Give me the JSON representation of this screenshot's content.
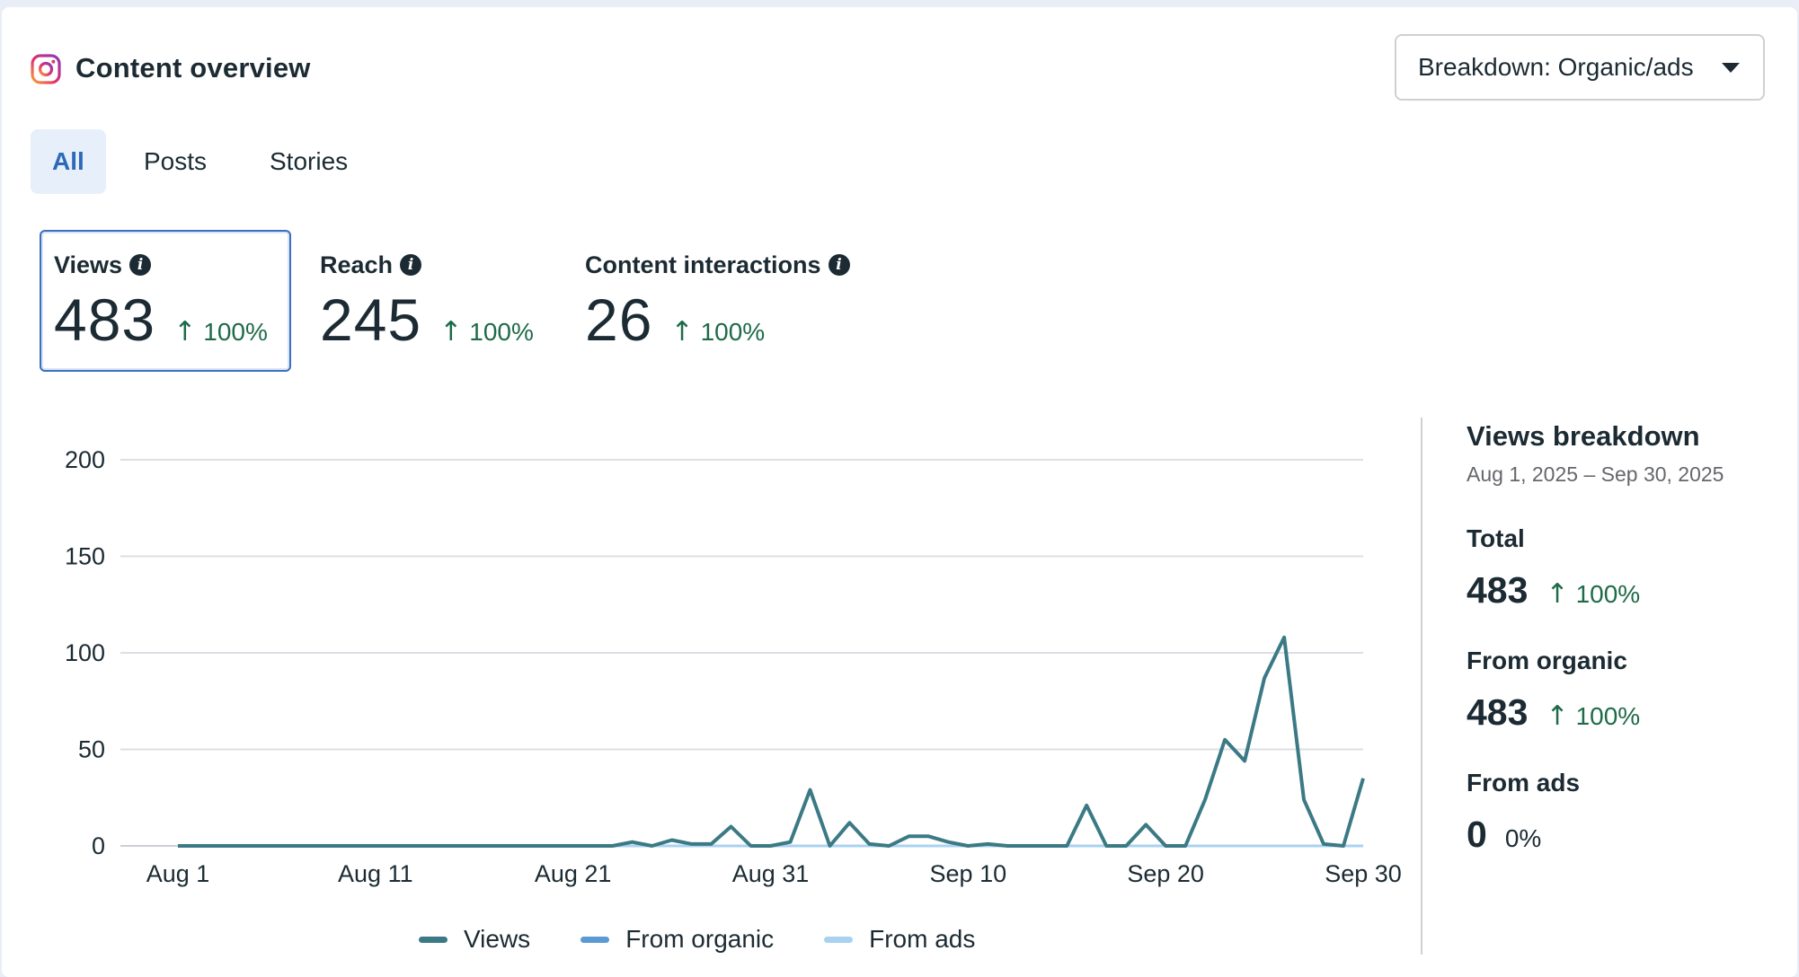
{
  "header": {
    "title": "Content overview",
    "breakdown_dropdown": "Breakdown: Organic/ads"
  },
  "tabs": [
    {
      "label": "All",
      "active": true
    },
    {
      "label": "Posts",
      "active": false
    },
    {
      "label": "Stories",
      "active": false
    }
  ],
  "metrics": [
    {
      "label": "Views",
      "value": "483",
      "change": "100%",
      "selected": true
    },
    {
      "label": "Reach",
      "value": "245",
      "change": "100%",
      "selected": false
    },
    {
      "label": "Content interactions",
      "value": "26",
      "change": "100%",
      "selected": false
    }
  ],
  "colors": {
    "views": "#3b7a85",
    "organic": "#5b9ad5",
    "ads": "#a9d2f2",
    "positive": "#1e6b49",
    "accent": "#2c6ab8"
  },
  "chart_data": {
    "type": "line",
    "x": [
      "Aug 1",
      "Aug 2",
      "Aug 3",
      "Aug 4",
      "Aug 5",
      "Aug 6",
      "Aug 7",
      "Aug 8",
      "Aug 9",
      "Aug 10",
      "Aug 11",
      "Aug 12",
      "Aug 13",
      "Aug 14",
      "Aug 15",
      "Aug 16",
      "Aug 17",
      "Aug 18",
      "Aug 19",
      "Aug 20",
      "Aug 21",
      "Aug 22",
      "Aug 23",
      "Aug 24",
      "Aug 25",
      "Aug 26",
      "Aug 27",
      "Aug 28",
      "Aug 29",
      "Aug 30",
      "Aug 31",
      "Sep 1",
      "Sep 2",
      "Sep 3",
      "Sep 4",
      "Sep 5",
      "Sep 6",
      "Sep 7",
      "Sep 8",
      "Sep 9",
      "Sep 10",
      "Sep 11",
      "Sep 12",
      "Sep 13",
      "Sep 14",
      "Sep 15",
      "Sep 16",
      "Sep 17",
      "Sep 18",
      "Sep 19",
      "Sep 20",
      "Sep 21",
      "Sep 22",
      "Sep 23",
      "Sep 24",
      "Sep 25",
      "Sep 26",
      "Sep 27",
      "Sep 28",
      "Sep 29",
      "Sep 30"
    ],
    "x_tick_labels": [
      "Aug 1",
      "Aug 11",
      "Aug 21",
      "Aug 31",
      "Sep 10",
      "Sep 20",
      "Sep 30"
    ],
    "y_ticks": [
      0,
      50,
      100,
      150,
      200
    ],
    "ylim": [
      0,
      200
    ],
    "grid": true,
    "legend_position": "bottom",
    "series": [
      {
        "name": "Views",
        "color": "#3b7a85",
        "values": [
          0,
          0,
          0,
          0,
          0,
          0,
          0,
          0,
          0,
          0,
          0,
          0,
          0,
          0,
          0,
          0,
          0,
          0,
          0,
          0,
          0,
          0,
          0,
          2,
          0,
          3,
          1,
          1,
          10,
          0,
          0,
          2,
          29,
          0,
          12,
          1,
          0,
          5,
          5,
          2,
          0,
          1,
          0,
          0,
          0,
          0,
          21,
          0,
          0,
          11,
          0,
          0,
          24,
          55,
          44,
          87,
          108,
          24,
          1,
          0,
          35
        ]
      },
      {
        "name": "From organic",
        "color": "#5b9ad5",
        "values": [
          0,
          0,
          0,
          0,
          0,
          0,
          0,
          0,
          0,
          0,
          0,
          0,
          0,
          0,
          0,
          0,
          0,
          0,
          0,
          0,
          0,
          0,
          0,
          2,
          0,
          3,
          1,
          1,
          10,
          0,
          0,
          2,
          29,
          0,
          12,
          1,
          0,
          5,
          5,
          2,
          0,
          1,
          0,
          0,
          0,
          0,
          21,
          0,
          0,
          11,
          0,
          0,
          24,
          55,
          44,
          87,
          108,
          24,
          1,
          0,
          35
        ]
      },
      {
        "name": "From ads",
        "color": "#a9d2f2",
        "values": [
          0,
          0,
          0,
          0,
          0,
          0,
          0,
          0,
          0,
          0,
          0,
          0,
          0,
          0,
          0,
          0,
          0,
          0,
          0,
          0,
          0,
          0,
          0,
          0,
          0,
          0,
          0,
          0,
          0,
          0,
          0,
          0,
          0,
          0,
          0,
          0,
          0,
          0,
          0,
          0,
          0,
          0,
          0,
          0,
          0,
          0,
          0,
          0,
          0,
          0,
          0,
          0,
          0,
          0,
          0,
          0,
          0,
          0,
          0,
          0,
          0
        ]
      }
    ]
  },
  "breakdown": {
    "title": "Views breakdown",
    "date_range": "Aug 1, 2025 – Sep 30, 2025",
    "items": [
      {
        "label": "Total",
        "value": "483",
        "change": "100%",
        "arrow": true
      },
      {
        "label": "From organic",
        "value": "483",
        "change": "100%",
        "arrow": true
      },
      {
        "label": "From ads",
        "value": "0",
        "change": "0%",
        "arrow": false
      }
    ]
  },
  "icons": {
    "brand": "instagram-icon",
    "info": "info-icon",
    "dropdown": "chevron-down-icon",
    "increase": "arrow-up-icon"
  }
}
